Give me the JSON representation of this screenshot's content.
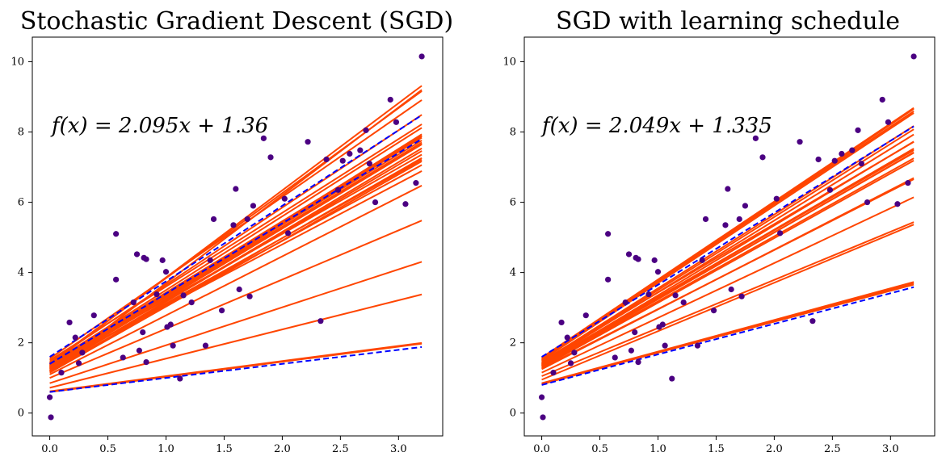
{
  "chart_data": [
    {
      "type": "scatter",
      "title": "Stochastic Gradient Descent (SGD)",
      "annotation": "f(x) = 2.095x + 1.36",
      "xlim": [
        -0.15,
        3.38
      ],
      "ylim": [
        -0.65,
        10.7
      ],
      "xticks": [
        0.0,
        0.5,
        1.0,
        1.5,
        2.0,
        2.5,
        3.0
      ],
      "xtick_labels": [
        "0.0",
        "0.5",
        "1.0",
        "1.5",
        "2.0",
        "2.5",
        "3.0"
      ],
      "yticks": [
        0,
        2,
        4,
        6,
        8,
        10
      ],
      "ytick_labels": [
        "0",
        "2",
        "4",
        "6",
        "8",
        "10"
      ],
      "grid": false,
      "point_color": "#4b0082",
      "line_color": "#ff4500",
      "dashed_color": "#0000ff",
      "points": [
        [
          0,
          0.45
        ],
        [
          0.01,
          -0.12
        ],
        [
          0.1,
          1.15
        ],
        [
          0.17,
          2.58
        ],
        [
          0.22,
          2.15
        ],
        [
          0.25,
          1.42
        ],
        [
          0.28,
          1.72
        ],
        [
          0.38,
          2.78
        ],
        [
          0.57,
          3.8
        ],
        [
          0.57,
          5.1
        ],
        [
          0.63,
          1.58
        ],
        [
          0.72,
          3.15
        ],
        [
          0.75,
          4.52
        ],
        [
          0.77,
          1.78
        ],
        [
          0.8,
          2.3
        ],
        [
          0.81,
          4.42
        ],
        [
          0.83,
          4.38
        ],
        [
          0.83,
          1.45
        ],
        [
          0.92,
          3.38
        ],
        [
          0.97,
          4.35
        ],
        [
          1.0,
          4.02
        ],
        [
          1.01,
          2.45
        ],
        [
          1.04,
          2.52
        ],
        [
          1.06,
          1.92
        ],
        [
          1.12,
          0.98
        ],
        [
          1.15,
          3.35
        ],
        [
          1.22,
          3.15
        ],
        [
          1.34,
          1.92
        ],
        [
          1.38,
          4.35
        ],
        [
          1.41,
          5.52
        ],
        [
          1.48,
          2.92
        ],
        [
          1.58,
          5.35
        ],
        [
          1.6,
          6.38
        ],
        [
          1.63,
          3.52
        ],
        [
          1.7,
          5.52
        ],
        [
          1.72,
          3.32
        ],
        [
          1.75,
          5.9
        ],
        [
          1.84,
          7.82
        ],
        [
          1.9,
          7.28
        ],
        [
          2.02,
          6.1
        ],
        [
          2.05,
          5.12
        ],
        [
          2.22,
          7.72
        ],
        [
          2.33,
          2.62
        ],
        [
          2.38,
          7.22
        ],
        [
          2.48,
          6.35
        ],
        [
          2.52,
          7.18
        ],
        [
          2.58,
          7.38
        ],
        [
          2.67,
          7.48
        ],
        [
          2.72,
          8.05
        ],
        [
          2.75,
          7.1
        ],
        [
          2.8,
          6.0
        ],
        [
          2.93,
          8.92
        ],
        [
          2.98,
          8.28
        ],
        [
          3.06,
          5.95
        ],
        [
          3.15,
          6.55
        ],
        [
          3.2,
          10.15
        ]
      ],
      "fits": [
        [
          1.3,
          2.0
        ],
        [
          1.35,
          2.04
        ],
        [
          1.4,
          2.1
        ],
        [
          1.25,
          2.0
        ],
        [
          1.2,
          1.98
        ],
        [
          1.22,
          1.95
        ],
        [
          1.28,
          2.05
        ],
        [
          1.32,
          1.98
        ],
        [
          1.36,
          2.0
        ],
        [
          1.18,
          1.9
        ],
        [
          1.15,
          1.88
        ],
        [
          1.26,
          1.86
        ],
        [
          1.3,
          1.8
        ],
        [
          1.32,
          1.74
        ],
        [
          1.1,
          1.68
        ],
        [
          1.5,
          2.1
        ],
        [
          1.45,
          2.2
        ],
        [
          1.55,
          2.3
        ],
        [
          1.42,
          2.42
        ],
        [
          1.38,
          2.48
        ],
        [
          1.2,
          2.5
        ],
        [
          1.0,
          1.4
        ],
        [
          0.85,
          1.08
        ],
        [
          0.72,
          0.83
        ],
        [
          0.6,
          0.43
        ],
        [
          0.62,
          0.43
        ],
        [
          1.28,
          2.08
        ],
        [
          1.38,
          1.96
        ],
        [
          1.34,
          1.88
        ],
        [
          1.4,
          2.03
        ]
      ],
      "dashed": [
        [
          1.6,
          2.15
        ],
        [
          1.4,
          2.0
        ],
        [
          0.6,
          0.4
        ]
      ]
    },
    {
      "type": "scatter",
      "title": "SGD with learning schedule",
      "annotation": "f(x) = 2.049x + 1.335",
      "xlim": [
        -0.15,
        3.38
      ],
      "ylim": [
        -0.65,
        10.7
      ],
      "xticks": [
        0.0,
        0.5,
        1.0,
        1.5,
        2.0,
        2.5,
        3.0
      ],
      "xtick_labels": [
        "0.0",
        "0.5",
        "1.0",
        "1.5",
        "2.0",
        "2.5",
        "3.0"
      ],
      "yticks": [
        0,
        2,
        4,
        6,
        8,
        10
      ],
      "ytick_labels": [
        "0",
        "2",
        "4",
        "6",
        "8",
        "10"
      ],
      "grid": false,
      "point_color": "#4b0082",
      "line_color": "#ff4500",
      "dashed_color": "#0000ff",
      "points": [
        [
          0,
          0.45
        ],
        [
          0.01,
          -0.12
        ],
        [
          0.1,
          1.15
        ],
        [
          0.17,
          2.58
        ],
        [
          0.22,
          2.15
        ],
        [
          0.25,
          1.42
        ],
        [
          0.28,
          1.72
        ],
        [
          0.38,
          2.78
        ],
        [
          0.57,
          3.8
        ],
        [
          0.57,
          5.1
        ],
        [
          0.63,
          1.58
        ],
        [
          0.72,
          3.15
        ],
        [
          0.75,
          4.52
        ],
        [
          0.77,
          1.78
        ],
        [
          0.8,
          2.3
        ],
        [
          0.81,
          4.42
        ],
        [
          0.83,
          4.38
        ],
        [
          0.83,
          1.45
        ],
        [
          0.92,
          3.38
        ],
        [
          0.97,
          4.35
        ],
        [
          1.0,
          4.02
        ],
        [
          1.01,
          2.45
        ],
        [
          1.04,
          2.52
        ],
        [
          1.06,
          1.92
        ],
        [
          1.12,
          0.98
        ],
        [
          1.15,
          3.35
        ],
        [
          1.22,
          3.15
        ],
        [
          1.34,
          1.92
        ],
        [
          1.38,
          4.35
        ],
        [
          1.41,
          5.52
        ],
        [
          1.48,
          2.92
        ],
        [
          1.58,
          5.35
        ],
        [
          1.6,
          6.38
        ],
        [
          1.63,
          3.52
        ],
        [
          1.7,
          5.52
        ],
        [
          1.72,
          3.32
        ],
        [
          1.75,
          5.9
        ],
        [
          1.84,
          7.82
        ],
        [
          1.9,
          7.28
        ],
        [
          2.02,
          6.1
        ],
        [
          2.05,
          5.12
        ],
        [
          2.22,
          7.72
        ],
        [
          2.33,
          2.62
        ],
        [
          2.38,
          7.22
        ],
        [
          2.48,
          6.35
        ],
        [
          2.52,
          7.18
        ],
        [
          2.58,
          7.38
        ],
        [
          2.67,
          7.48
        ],
        [
          2.72,
          8.05
        ],
        [
          2.75,
          7.1
        ],
        [
          2.8,
          6.0
        ],
        [
          2.93,
          8.92
        ],
        [
          2.98,
          8.28
        ],
        [
          3.06,
          5.95
        ],
        [
          3.15,
          6.55
        ],
        [
          3.2,
          10.15
        ]
      ],
      "fits": [
        [
          1.55,
          2.2
        ],
        [
          1.58,
          2.22
        ],
        [
          1.5,
          2.2
        ],
        [
          1.52,
          2.23
        ],
        [
          1.45,
          2.1
        ],
        [
          1.42,
          2.08
        ],
        [
          1.4,
          1.9
        ],
        [
          1.38,
          1.92
        ],
        [
          1.36,
          1.89
        ],
        [
          1.35,
          1.93
        ],
        [
          1.34,
          1.9
        ],
        [
          1.48,
          1.95
        ],
        [
          1.3,
          1.84
        ],
        [
          1.33,
          1.85
        ],
        [
          1.25,
          1.7
        ],
        [
          1.28,
          1.68
        ],
        [
          1.15,
          1.56
        ],
        [
          1.05,
          1.37
        ],
        [
          0.95,
          1.38
        ],
        [
          0.85,
          0.9
        ],
        [
          0.82,
          0.9
        ],
        [
          0.84,
          0.88
        ],
        [
          1.4,
          2.04
        ],
        [
          1.36,
          1.99
        ]
      ],
      "dashed": [
        [
          1.6,
          2.05
        ],
        [
          0.8,
          0.87
        ]
      ]
    }
  ]
}
